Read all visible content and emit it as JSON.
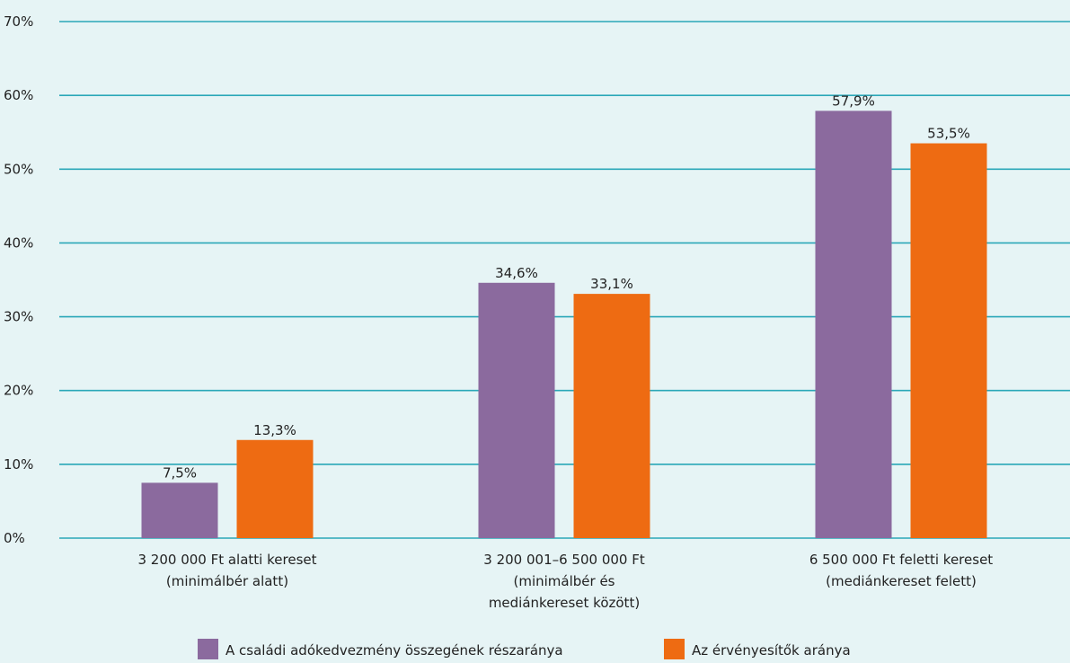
{
  "chart_data": {
    "type": "bar",
    "categories": [
      [
        "3 200 000 Ft alatti kereset",
        "(minimálbér alatt)"
      ],
      [
        "3 200 001–6 500 000 Ft",
        "(minimálbér és",
        "mediánkereset között)"
      ],
      [
        "6 500 000 Ft feletti kereset",
        "(mediánkereset felett)"
      ]
    ],
    "series": [
      {
        "name": "A családi adókedvezmény összegének részaránya",
        "values": [
          7.5,
          34.6,
          57.9
        ],
        "labels": [
          "7,5%",
          "34,6%",
          "57,9%"
        ],
        "color": "#8b6a9e"
      },
      {
        "name": "Az érvényesítők aránya",
        "values": [
          13.3,
          33.1,
          53.5
        ],
        "labels": [
          "13,3%",
          "33,1%",
          "53,5%"
        ],
        "color": "#ee6b12"
      }
    ],
    "yticks": [
      "0%",
      "10%",
      "20%",
      "30%",
      "40%",
      "50%",
      "60%",
      "70%"
    ],
    "ylim": [
      0,
      70
    ],
    "grid": true,
    "grid_color": "#2aa7b8",
    "legend_position": "bottom-center"
  }
}
